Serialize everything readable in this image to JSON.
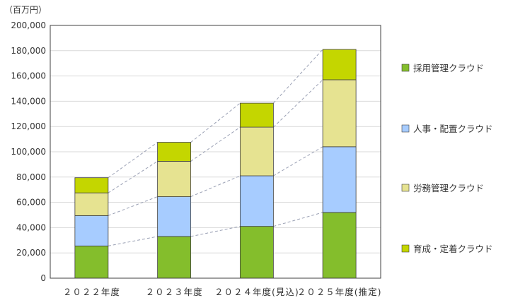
{
  "chart_data": {
    "type": "bar",
    "stacked": true,
    "unit_label": "（百万円）",
    "categories": [
      "２０２２年度",
      "２０２３年度",
      "２０２４年度(見込)",
      "２０２５年度(推定)"
    ],
    "series": [
      {
        "name": "育成・定着クラウド",
        "color": "#c4d600",
        "values": [
          12000,
          15000,
          19000,
          24000
        ]
      },
      {
        "name": "労務管理クラウド",
        "color": "#e6e391",
        "values": [
          18000,
          28000,
          38500,
          53000
        ]
      },
      {
        "name": "人事・配置クラウド",
        "color": "#a7ccff",
        "values": [
          24000,
          31500,
          40000,
          52000
        ]
      },
      {
        "name": "採用管理クラウド",
        "color": "#84be2c",
        "values": [
          25500,
          33000,
          41000,
          52000
        ]
      }
    ],
    "stack_order": [
      "採用管理クラウド",
      "人事・配置クラウド",
      "労務管理クラウド",
      "育成・定着クラウド"
    ],
    "legend_order": [
      "採用管理クラウド",
      "人事・配置クラウド",
      "労務管理クラウド",
      "育成・定着クラウド"
    ],
    "ylim": [
      0,
      200000
    ],
    "yticks": [
      "0",
      "20,000",
      "40,000",
      "60,000",
      "80,000",
      "100,000",
      "120,000",
      "140,000",
      "160,000",
      "180,000",
      "200,000"
    ],
    "grid": true,
    "connector_lines": true,
    "legend_position": "right"
  }
}
